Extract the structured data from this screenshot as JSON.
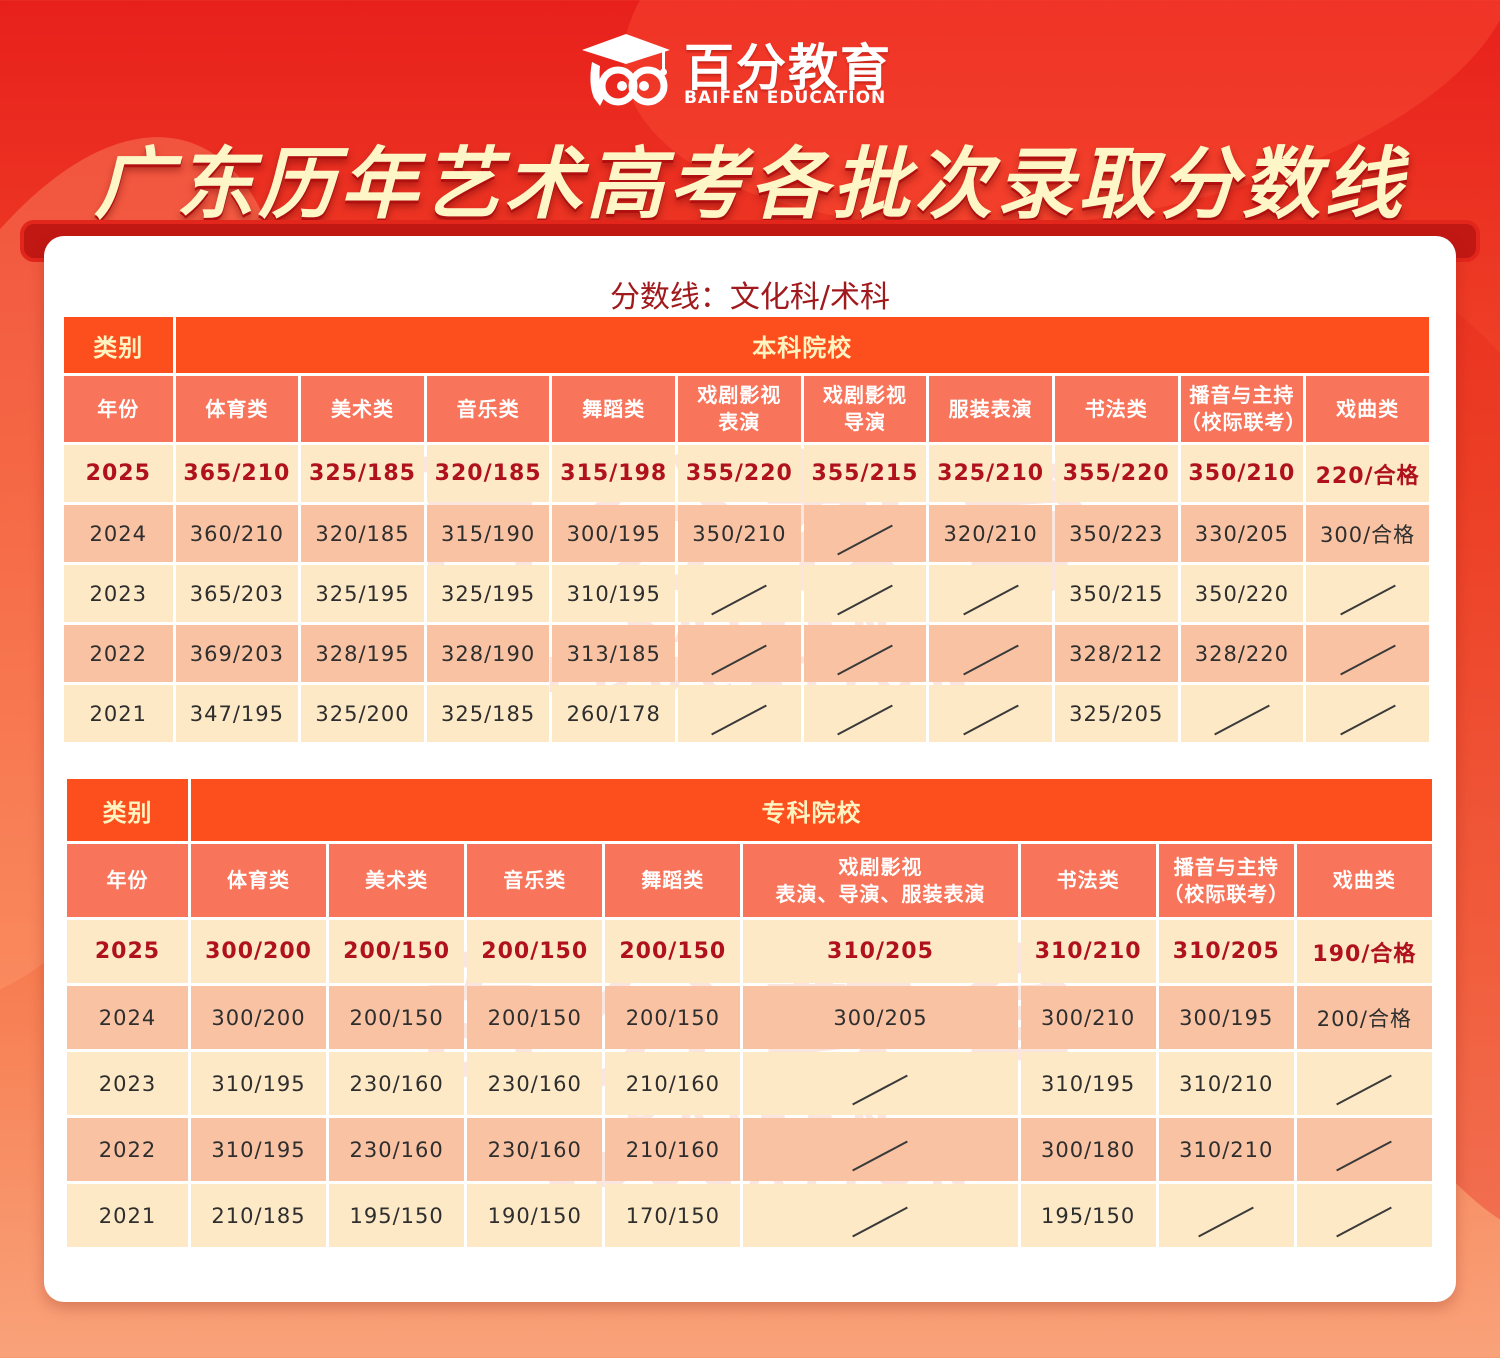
{
  "header": {
    "logo_cn": "百分教育",
    "logo_en": "BAIFEN EDUCATION",
    "title": "广东历年艺术高考各批次录取分数线"
  },
  "subtitle": "分数线：文化科/术科",
  "watermark": {
    "cn": "百分教育",
    "en": "BAIFEN EDUCATION"
  },
  "colors": {
    "header_orange": "#fd4e1d",
    "column_header": "#f8745a",
    "row_light": "#fde9c6",
    "row_dark": "#f9c3a3",
    "highlight_text": "#b0121c"
  },
  "undergrad": {
    "category_label": "类别",
    "group_label": "本科院校",
    "year_label": "年份",
    "columns": [
      [
        "体育类"
      ],
      [
        "美术类"
      ],
      [
        "音乐类"
      ],
      [
        "舞蹈类"
      ],
      [
        "戏剧影视",
        "表演"
      ],
      [
        "戏剧影视",
        "导演"
      ],
      [
        "服装表演"
      ],
      [
        "书法类"
      ],
      [
        "播音与主持",
        "（校际联考）"
      ],
      [
        "戏曲类"
      ]
    ],
    "rows": [
      {
        "year": "2025",
        "values": [
          "365/210",
          "325/185",
          "320/185",
          "315/198",
          "355/220",
          "355/215",
          "325/210",
          "355/220",
          "350/210",
          "220/合格"
        ]
      },
      {
        "year": "2024",
        "values": [
          "360/210",
          "320/185",
          "315/190",
          "300/195",
          "350/210",
          "",
          "320/210",
          "350/223",
          "330/205",
          "300/合格"
        ]
      },
      {
        "year": "2023",
        "values": [
          "365/203",
          "325/195",
          "325/195",
          "310/195",
          "",
          "",
          "",
          "350/215",
          "350/220",
          ""
        ]
      },
      {
        "year": "2022",
        "values": [
          "369/203",
          "328/195",
          "328/190",
          "313/185",
          "",
          "",
          "",
          "328/212",
          "328/220",
          ""
        ]
      },
      {
        "year": "2021",
        "values": [
          "347/195",
          "325/200",
          "325/185",
          "260/178",
          "",
          "",
          "",
          "325/205",
          "",
          ""
        ]
      }
    ]
  },
  "vocational": {
    "category_label": "类别",
    "group_label": "专科院校",
    "year_label": "年份",
    "columns": [
      [
        "体育类"
      ],
      [
        "美术类"
      ],
      [
        "音乐类"
      ],
      [
        "舞蹈类"
      ],
      [
        "戏剧影视",
        "表演、导演、服装表演"
      ],
      [
        "书法类"
      ],
      [
        "播音与主持",
        "（校际联考）"
      ],
      [
        "戏曲类"
      ]
    ],
    "rows": [
      {
        "year": "2025",
        "values": [
          "300/200",
          "200/150",
          "200/150",
          "200/150",
          "310/205",
          "310/210",
          "310/205",
          "190/合格"
        ]
      },
      {
        "year": "2024",
        "values": [
          "300/200",
          "200/150",
          "200/150",
          "200/150",
          "300/205",
          "300/210",
          "300/195",
          "200/合格"
        ]
      },
      {
        "year": "2023",
        "values": [
          "310/195",
          "230/160",
          "230/160",
          "210/160",
          "",
          "310/195",
          "310/210",
          ""
        ]
      },
      {
        "year": "2022",
        "values": [
          "310/195",
          "230/160",
          "230/160",
          "210/160",
          "",
          "300/180",
          "310/210",
          ""
        ]
      },
      {
        "year": "2021",
        "values": [
          "210/185",
          "195/150",
          "190/150",
          "170/150",
          "",
          "195/150",
          "",
          ""
        ]
      }
    ]
  }
}
